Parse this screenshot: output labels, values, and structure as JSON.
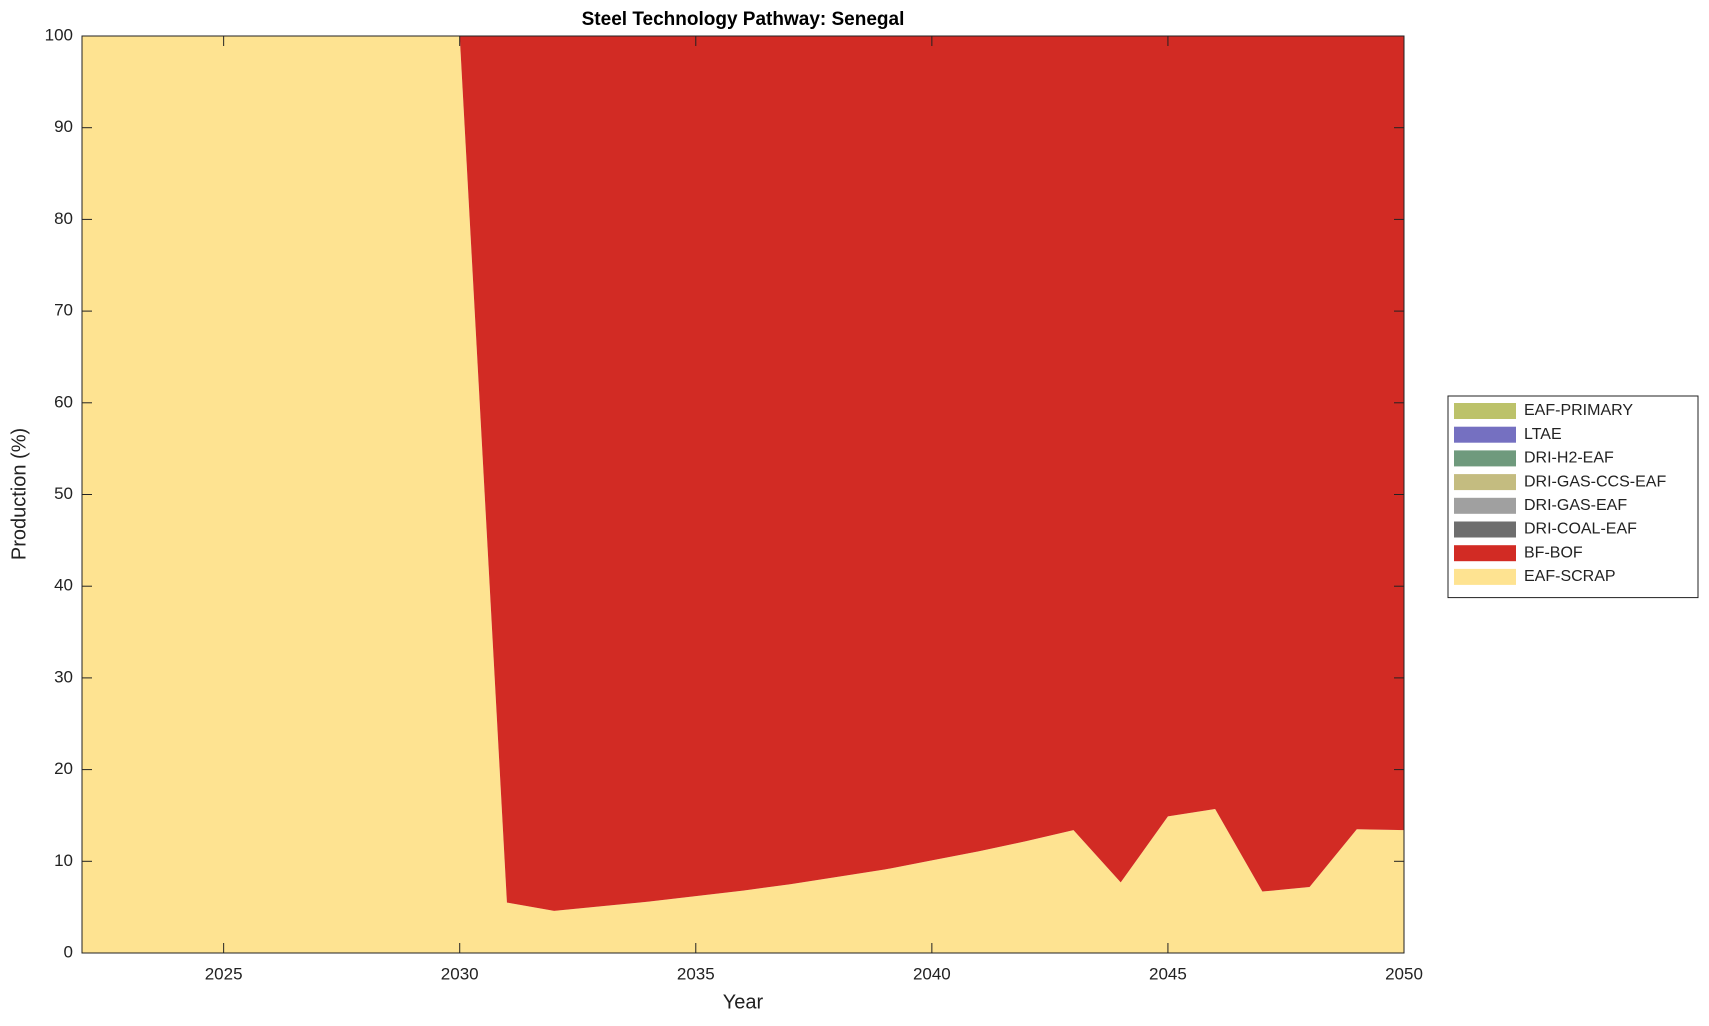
{
  "chart_data": {
    "type": "stacked_area",
    "title": "Steel Technology Pathway: Senegal",
    "x_label": "Year",
    "y_label": "Production (%)",
    "x": [
      2022,
      2023,
      2024,
      2025,
      2026,
      2027,
      2028,
      2029,
      2030,
      2031,
      2032,
      2033,
      2034,
      2035,
      2036,
      2037,
      2038,
      2039,
      2040,
      2041,
      2042,
      2043,
      2044,
      2045,
      2046,
      2047,
      2048,
      2049,
      2050
    ],
    "series": [
      {
        "name": "EAF-SCRAP",
        "color": "#fee391",
        "values": [
          100,
          100,
          100,
          100,
          100,
          100,
          100,
          100,
          100,
          5.5,
          4.6,
          5.1,
          5.6,
          6.2,
          6.8,
          7.5,
          8.3,
          9.1,
          10.1,
          11.1,
          12.2,
          13.4,
          7.7,
          14.9,
          15.7,
          6.7,
          7.2,
          13.5,
          13.4
        ]
      },
      {
        "name": "BF-BOF",
        "color": "#d22b24",
        "values": [
          0,
          0,
          0,
          0,
          0,
          0,
          0,
          0,
          0,
          94.5,
          95.4,
          94.9,
          94.4,
          93.8,
          93.2,
          92.5,
          91.7,
          90.9,
          89.9,
          88.9,
          87.8,
          86.6,
          92.3,
          85.1,
          84.3,
          93.3,
          92.8,
          86.5,
          86.6
        ]
      },
      {
        "name": "DRI-COAL-EAF",
        "color": "#6e6e6e",
        "values": [
          0,
          0,
          0,
          0,
          0,
          0,
          0,
          0,
          0,
          0,
          0,
          0,
          0,
          0,
          0,
          0,
          0,
          0,
          0,
          0,
          0,
          0,
          0,
          0,
          0,
          0,
          0,
          0,
          0
        ]
      },
      {
        "name": "DRI-GAS-EAF",
        "color": "#a0a0a0",
        "values": [
          0,
          0,
          0,
          0,
          0,
          0,
          0,
          0,
          0,
          0,
          0,
          0,
          0,
          0,
          0,
          0,
          0,
          0,
          0,
          0,
          0,
          0,
          0,
          0,
          0,
          0,
          0,
          0,
          0
        ]
      },
      {
        "name": "DRI-GAS-CCS-EAF",
        "color": "#c4bc80",
        "values": [
          0,
          0,
          0,
          0,
          0,
          0,
          0,
          0,
          0,
          0,
          0,
          0,
          0,
          0,
          0,
          0,
          0,
          0,
          0,
          0,
          0,
          0,
          0,
          0,
          0,
          0,
          0,
          0,
          0
        ]
      },
      {
        "name": "DRI-H2-EAF",
        "color": "#6f9a7d",
        "values": [
          0,
          0,
          0,
          0,
          0,
          0,
          0,
          0,
          0,
          0,
          0,
          0,
          0,
          0,
          0,
          0,
          0,
          0,
          0,
          0,
          0,
          0,
          0,
          0,
          0,
          0,
          0,
          0,
          0
        ]
      },
      {
        "name": "LTAE",
        "color": "#7570c1",
        "values": [
          0,
          0,
          0,
          0,
          0,
          0,
          0,
          0,
          0,
          0,
          0,
          0,
          0,
          0,
          0,
          0,
          0,
          0,
          0,
          0,
          0,
          0,
          0,
          0,
          0,
          0,
          0,
          0,
          0
        ]
      },
      {
        "name": "EAF-PRIMARY",
        "color": "#bcc26a",
        "values": [
          0,
          0,
          0,
          0,
          0,
          0,
          0,
          0,
          0,
          0,
          0,
          0,
          0,
          0,
          0,
          0,
          0,
          0,
          0,
          0,
          0,
          0,
          0,
          0,
          0,
          0,
          0,
          0,
          0
        ]
      }
    ],
    "xlim": [
      2022,
      2050
    ],
    "xticks": [
      2025,
      2030,
      2035,
      2040,
      2045,
      2050
    ],
    "ylim": [
      0,
      100
    ],
    "yticks": [
      0,
      10,
      20,
      30,
      40,
      50,
      60,
      70,
      80,
      90,
      100
    ],
    "legend": "right"
  }
}
